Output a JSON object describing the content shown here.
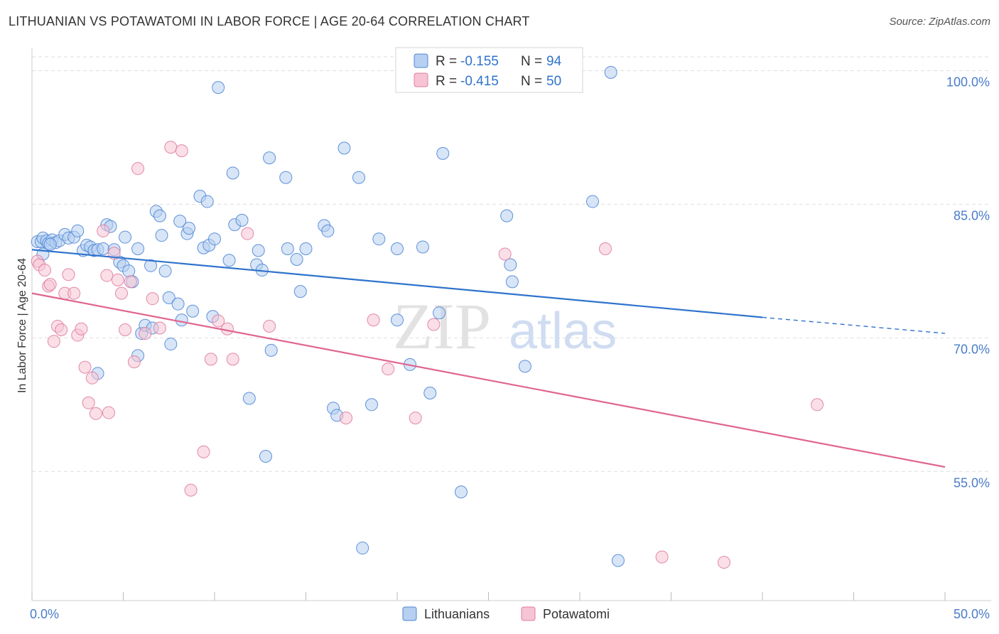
{
  "title": "LITHUANIAN VS POTAWATOMI IN LABOR FORCE | AGE 20-64 CORRELATION CHART",
  "source": "Source: ZipAtlas.com",
  "watermark": {
    "zip": "ZIP",
    "atlas": "atlas"
  },
  "colors": {
    "blue": "#4f86d6",
    "blue_fill": "#b7cff0",
    "blue_line": "#2f73cc",
    "pink": "#e07ca0",
    "pink_fill": "#f6c4d4",
    "pink_line": "#e0658f",
    "axis_text": "#4a7cc9",
    "grid": "#dddddd"
  },
  "legend": {
    "rows": [
      {
        "r_label": "R =",
        "r_value": "-0.155",
        "n_label": "N =",
        "n_value": "94"
      },
      {
        "r_label": "R =",
        "r_value": "-0.415",
        "n_label": "N =",
        "n_value": "50"
      }
    ]
  },
  "chart_data": {
    "type": "scatter",
    "title": "LITHUANIAN VS POTAWATOMI IN LABOR FORCE | AGE 20-64 CORRELATION CHART",
    "xlabel": "",
    "ylabel": "In Labor Force | Age 20-64",
    "xlim": [
      0,
      50
    ],
    "ylim": [
      40.5,
      102.5
    ],
    "x_tick_labels": [
      "0.0%",
      "50.0%"
    ],
    "y_ticks": [
      55,
      70,
      85,
      100
    ],
    "y_tick_labels": [
      "55.0%",
      "70.0%",
      "85.0%",
      "100.0%"
    ],
    "grid": true,
    "series": [
      {
        "name": "Lithuanians",
        "r": -0.155,
        "n": 94,
        "trend": {
          "x0": 0,
          "y0": 79.9,
          "x1": 40,
          "y1": 72.3,
          "dash_to_x": 50,
          "dash_to_y": 70.5
        },
        "points": [
          [
            0.3,
            80.8
          ],
          [
            0.5,
            80.8
          ],
          [
            0.6,
            81.2
          ],
          [
            0.8,
            80.9
          ],
          [
            0.9,
            80.6
          ],
          [
            1.1,
            81.0
          ],
          [
            1.3,
            80.7
          ],
          [
            1.5,
            80.9
          ],
          [
            1.8,
            81.6
          ],
          [
            2.0,
            81.2
          ],
          [
            2.3,
            81.3
          ],
          [
            2.5,
            82.0
          ],
          [
            2.8,
            79.8
          ],
          [
            3.0,
            80.4
          ],
          [
            3.2,
            80.2
          ],
          [
            3.4,
            79.8
          ],
          [
            3.6,
            79.9
          ],
          [
            3.9,
            80.0
          ],
          [
            4.1,
            82.7
          ],
          [
            4.3,
            82.5
          ],
          [
            4.5,
            79.9
          ],
          [
            4.8,
            78.5
          ],
          [
            5.0,
            78.1
          ],
          [
            5.1,
            81.3
          ],
          [
            5.3,
            77.5
          ],
          [
            5.5,
            76.3
          ],
          [
            5.8,
            80.0
          ],
          [
            6.0,
            70.5
          ],
          [
            6.2,
            71.4
          ],
          [
            6.5,
            78.1
          ],
          [
            6.6,
            71.1
          ],
          [
            6.8,
            84.2
          ],
          [
            7.0,
            83.7
          ],
          [
            7.1,
            81.5
          ],
          [
            7.3,
            77.5
          ],
          [
            7.5,
            74.5
          ],
          [
            7.6,
            69.3
          ],
          [
            8.0,
            73.8
          ],
          [
            8.1,
            83.1
          ],
          [
            8.2,
            72.0
          ],
          [
            8.5,
            81.7
          ],
          [
            8.6,
            82.3
          ],
          [
            8.8,
            73.0
          ],
          [
            9.2,
            85.9
          ],
          [
            9.4,
            80.1
          ],
          [
            9.6,
            85.3
          ],
          [
            9.7,
            80.4
          ],
          [
            9.9,
            72.4
          ],
          [
            10.0,
            81.1
          ],
          [
            10.2,
            98.1
          ],
          [
            10.8,
            78.7
          ],
          [
            11.0,
            88.5
          ],
          [
            11.1,
            82.7
          ],
          [
            11.5,
            83.2
          ],
          [
            11.9,
            63.2
          ],
          [
            12.3,
            78.2
          ],
          [
            12.4,
            79.8
          ],
          [
            12.6,
            77.6
          ],
          [
            12.8,
            56.7
          ],
          [
            13.0,
            90.2
          ],
          [
            13.1,
            68.6
          ],
          [
            13.9,
            88.0
          ],
          [
            14.0,
            80.0
          ],
          [
            14.5,
            78.8
          ],
          [
            14.7,
            75.2
          ],
          [
            15.0,
            80.0
          ],
          [
            16.0,
            82.6
          ],
          [
            16.2,
            82.0
          ],
          [
            16.5,
            62.1
          ],
          [
            16.7,
            61.3
          ],
          [
            17.1,
            91.3
          ],
          [
            17.9,
            88.0
          ],
          [
            18.1,
            46.4
          ],
          [
            18.6,
            62.5
          ],
          [
            19.0,
            81.1
          ],
          [
            20.0,
            80.0
          ],
          [
            20.0,
            72.0
          ],
          [
            20.7,
            67.0
          ],
          [
            21.4,
            80.2
          ],
          [
            21.8,
            63.8
          ],
          [
            22.3,
            72.8
          ],
          [
            22.5,
            90.7
          ],
          [
            23.5,
            52.7
          ],
          [
            26.0,
            83.7
          ],
          [
            26.2,
            78.2
          ],
          [
            26.3,
            76.3
          ],
          [
            27.0,
            66.8
          ],
          [
            30.7,
            85.3
          ],
          [
            31.7,
            99.8
          ],
          [
            32.1,
            45.0
          ],
          [
            0.6,
            79.4
          ],
          [
            1.0,
            80.5
          ],
          [
            5.8,
            68.0
          ],
          [
            3.6,
            66.0
          ]
        ]
      },
      {
        "name": "Potawatomi",
        "r": -0.415,
        "n": 50,
        "trend": {
          "x0": 0,
          "y0": 75.0,
          "x1": 50,
          "y1": 55.5
        },
        "points": [
          [
            0.3,
            78.6
          ],
          [
            0.4,
            78.2
          ],
          [
            0.7,
            77.6
          ],
          [
            0.9,
            75.8
          ],
          [
            1.0,
            76.0
          ],
          [
            1.2,
            69.6
          ],
          [
            1.4,
            71.3
          ],
          [
            1.6,
            70.9
          ],
          [
            1.8,
            75.0
          ],
          [
            2.0,
            77.1
          ],
          [
            2.3,
            75.0
          ],
          [
            2.5,
            70.3
          ],
          [
            2.7,
            71.0
          ],
          [
            2.9,
            66.7
          ],
          [
            3.1,
            62.7
          ],
          [
            3.3,
            65.5
          ],
          [
            3.5,
            61.5
          ],
          [
            3.9,
            82.0
          ],
          [
            4.1,
            77.0
          ],
          [
            4.2,
            61.6
          ],
          [
            4.5,
            79.5
          ],
          [
            4.7,
            76.5
          ],
          [
            4.9,
            75.0
          ],
          [
            5.1,
            70.9
          ],
          [
            5.4,
            76.3
          ],
          [
            5.6,
            67.3
          ],
          [
            5.8,
            89.0
          ],
          [
            6.2,
            70.5
          ],
          [
            6.6,
            74.4
          ],
          [
            7.0,
            71.1
          ],
          [
            7.6,
            91.4
          ],
          [
            8.2,
            91.0
          ],
          [
            8.7,
            52.9
          ],
          [
            9.4,
            57.2
          ],
          [
            9.8,
            67.6
          ],
          [
            10.2,
            71.9
          ],
          [
            10.7,
            71.0
          ],
          [
            11.0,
            67.6
          ],
          [
            11.8,
            81.7
          ],
          [
            13.0,
            71.3
          ],
          [
            17.2,
            61.0
          ],
          [
            18.7,
            72.0
          ],
          [
            19.5,
            66.5
          ],
          [
            21.0,
            61.0
          ],
          [
            22.0,
            71.5
          ],
          [
            25.9,
            79.4
          ],
          [
            31.4,
            80.0
          ],
          [
            34.5,
            45.4
          ],
          [
            37.9,
            44.8
          ],
          [
            43.0,
            62.5
          ]
        ]
      }
    ]
  }
}
